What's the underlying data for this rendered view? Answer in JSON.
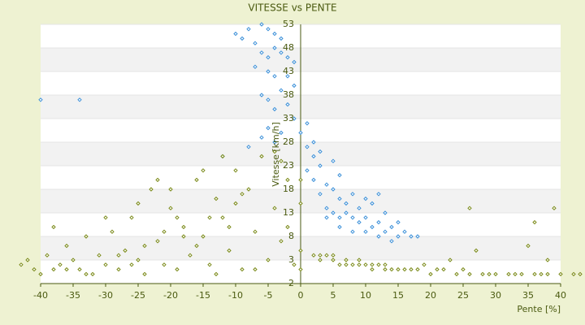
{
  "chart_data": {
    "type": "scatter",
    "title": "VITESSE vs PENTE",
    "x_label": "Pente [%]",
    "y_label": "Vitesse [km/h]",
    "xlim": [
      -40,
      40
    ],
    "xticks": [
      -40,
      -35,
      -30,
      -25,
      -20,
      -15,
      -10,
      -5,
      0,
      5,
      10,
      15,
      20,
      25,
      30,
      35,
      40
    ],
    "ylim": [
      -2,
      53
    ],
    "yticks": [
      -2,
      3,
      8,
      13,
      18,
      23,
      28,
      33,
      38,
      43,
      48,
      53
    ],
    "grid": true,
    "series": [
      {
        "color": "#3a8fd8",
        "x": [
          -10,
          -9,
          -8,
          -7,
          -6,
          -5,
          -4,
          -3,
          -6,
          -5,
          -4,
          -3,
          -2,
          -1,
          -7,
          -5,
          -4,
          -2,
          -1,
          -3,
          -5,
          -4,
          -6,
          -2,
          -1,
          -5,
          -3,
          -4,
          -6,
          -8,
          -12,
          -40,
          -34,
          0,
          1,
          2,
          3,
          1,
          2,
          4,
          3,
          5,
          6,
          4,
          5,
          6,
          7,
          8,
          9,
          10,
          11,
          12,
          13,
          14,
          15,
          16,
          17,
          18,
          7,
          9,
          11,
          13,
          15,
          6,
          8,
          10,
          12,
          5,
          3,
          2,
          1,
          4,
          6,
          8,
          10,
          12,
          14
        ],
        "values": [
          51,
          50,
          52,
          49,
          53,
          52,
          51,
          50,
          47,
          46,
          48,
          47,
          46,
          45,
          44,
          43,
          42,
          42,
          40,
          39,
          37,
          35,
          38,
          36,
          33,
          31,
          30,
          28,
          29,
          27,
          25,
          37,
          37,
          30,
          27,
          25,
          23,
          22,
          20,
          19,
          17,
          18,
          16,
          14,
          13,
          12,
          13,
          12,
          11,
          12,
          10,
          11,
          9,
          10,
          8,
          9,
          8,
          8,
          15,
          14,
          15,
          13,
          11,
          21,
          17,
          16,
          17,
          24,
          26,
          28,
          32,
          12,
          10,
          9,
          9,
          8,
          7
        ]
      },
      {
        "color": "#7a8a18",
        "x": [
          -43,
          -42,
          -41,
          -40,
          -39,
          -38,
          -37,
          -36,
          -35,
          -34,
          -33,
          -32,
          -31,
          -30,
          -29,
          -28,
          -27,
          -26,
          -25,
          -24,
          -23,
          -22,
          -21,
          -20,
          -19,
          -18,
          -17,
          -16,
          -15,
          -14,
          -13,
          -12,
          -11,
          -10,
          -9,
          -8,
          -7,
          -6,
          -5,
          -4,
          -3,
          -2,
          -1,
          -30,
          -25,
          -20,
          -15,
          -12,
          -22,
          -18,
          -24,
          -28,
          -33,
          -36,
          -38,
          -14,
          -10,
          -9,
          -11,
          -16,
          -19,
          -21,
          -26,
          -13,
          -7,
          -3,
          -4,
          -2,
          0,
          0,
          0,
          0,
          2,
          3,
          4,
          5,
          6,
          7,
          8,
          9,
          10,
          11,
          12,
          13,
          14,
          15,
          16,
          18,
          20,
          22,
          24,
          26,
          28,
          30,
          32,
          34,
          36,
          38,
          40,
          42,
          43,
          3,
          5,
          7,
          9,
          11,
          13,
          17,
          21,
          25,
          29,
          33,
          37,
          35,
          36,
          38,
          27,
          23,
          19,
          39,
          26
        ],
        "values": [
          2,
          3,
          1,
          0,
          4,
          1,
          2,
          6,
          3,
          1,
          8,
          0,
          4,
          2,
          9,
          1,
          5,
          12,
          3,
          0,
          18,
          7,
          2,
          14,
          1,
          10,
          4,
          20,
          8,
          2,
          16,
          12,
          5,
          22,
          1,
          18,
          9,
          25,
          3,
          14,
          7,
          20,
          2,
          12,
          15,
          18,
          22,
          25,
          20,
          8,
          6,
          4,
          0,
          1,
          10,
          12,
          15,
          17,
          10,
          6,
          12,
          9,
          2,
          0,
          1,
          24,
          26,
          10,
          5,
          15,
          1,
          20,
          4,
          3,
          4,
          3,
          2,
          3,
          2,
          2,
          2,
          1,
          2,
          1,
          1,
          1,
          1,
          1,
          0,
          1,
          0,
          0,
          0,
          0,
          0,
          0,
          0,
          0,
          0,
          0,
          0,
          4,
          4,
          2,
          3,
          2,
          2,
          1,
          1,
          1,
          0,
          0,
          0,
          6,
          11,
          3,
          5,
          3,
          2,
          14,
          14
        ]
      }
    ]
  }
}
